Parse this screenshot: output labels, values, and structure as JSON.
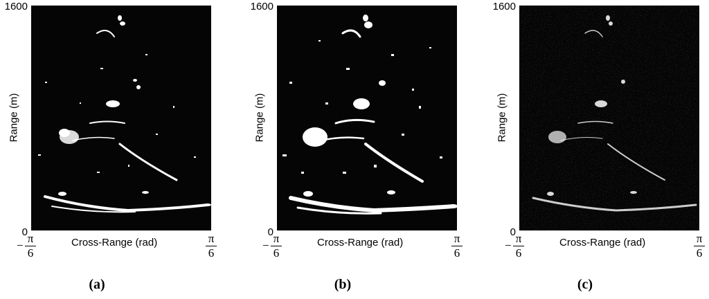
{
  "panels": [
    {
      "caption": "(a)",
      "ymax": "1600",
      "ymin": "0",
      "ylabel": "Range (m)",
      "xlabel": "Cross-Range (rad)",
      "xmin_sign": "−",
      "xmin_num": "π",
      "xmin_den": "6",
      "xmax_num": "π",
      "xmax_den": "6"
    },
    {
      "caption": "(b)",
      "ymax": "1600",
      "ymin": "0",
      "ylabel": "Range (m)",
      "xlabel": "Cross-Range (rad)",
      "xmin_sign": "−",
      "xmin_num": "π",
      "xmin_den": "6",
      "xmax_num": "π",
      "xmax_den": "6"
    },
    {
      "caption": "(c)",
      "ymax": "1600",
      "ymin": "0",
      "ylabel": "Range (m)",
      "xlabel": "Cross-Range (rad)",
      "xmin_sign": "−",
      "xmin_num": "π",
      "xmin_den": "6",
      "xmax_num": "π",
      "xmax_den": "6"
    }
  ],
  "colors": {
    "background": "#050505",
    "returns": "#ffffff"
  }
}
